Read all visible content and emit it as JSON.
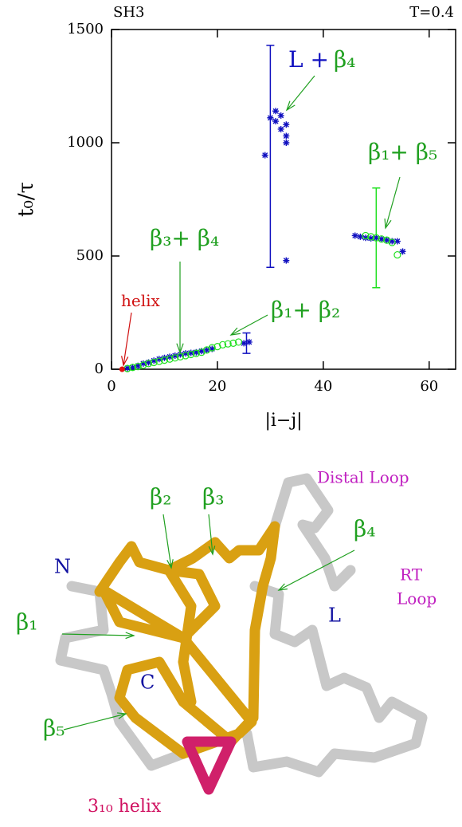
{
  "chart_data": {
    "type": "scatter",
    "title": "SH3",
    "subtitle": "T=0.4",
    "xlabel": "|i−j|",
    "ylabel": "t₀/τ",
    "xlim": [
      0,
      65
    ],
    "xticks": [
      0,
      20,
      40,
      60
    ],
    "ylim": [
      0,
      1500
    ],
    "yticks": [
      0,
      500,
      1000,
      1500
    ],
    "series": [
      {
        "name": "blue",
        "color": "#1010c0",
        "marker": "asterisk",
        "x": [
          3,
          4,
          5,
          6,
          7,
          8,
          9,
          10,
          11,
          12,
          13,
          14,
          15,
          16,
          17,
          18,
          19,
          25,
          26,
          29,
          30,
          31,
          31,
          32,
          32,
          33,
          33,
          33,
          33,
          46,
          47,
          48,
          49,
          50,
          51,
          52,
          53,
          54,
          55
        ],
        "values": [
          5,
          8,
          15,
          25,
          30,
          38,
          45,
          50,
          55,
          60,
          65,
          70,
          72,
          75,
          80,
          85,
          90,
          115,
          120,
          945,
          1110,
          1140,
          1095,
          1120,
          1060,
          1080,
          1000,
          1030,
          480,
          590,
          585,
          580,
          578,
          580,
          575,
          570,
          565,
          565,
          520
        ]
      },
      {
        "name": "green",
        "color": "#20e020",
        "marker": "circle",
        "x": [
          3,
          4,
          5,
          6,
          7,
          8,
          9,
          10,
          11,
          12,
          13,
          14,
          15,
          16,
          17,
          18,
          19,
          20,
          21,
          22,
          23,
          24,
          48,
          49,
          50,
          51,
          52,
          53,
          54
        ],
        "values": [
          3,
          8,
          12,
          18,
          25,
          30,
          35,
          40,
          45,
          50,
          55,
          60,
          65,
          70,
          75,
          85,
          95,
          100,
          108,
          112,
          115,
          120,
          590,
          585,
          580,
          575,
          570,
          560,
          505
        ]
      },
      {
        "name": "helix",
        "color": "#e01010",
        "marker": "dot",
        "x": [
          2
        ],
        "values": [
          0
        ]
      }
    ],
    "error_bars": [
      {
        "x": 30,
        "value": 940,
        "error": 490,
        "color": "#1010c0"
      },
      {
        "x": 50,
        "value": 580,
        "error": 220,
        "color": "#20e020"
      },
      {
        "x": 25.5,
        "value": 115,
        "error": 45,
        "color": "#1010c0"
      }
    ],
    "annotations": [
      {
        "parts": [
          {
            "text": "helix",
            "color": "#d01010"
          }
        ]
      },
      {
        "parts": [
          {
            "text": "β₃+ β₄",
            "color": "#20a020"
          }
        ]
      },
      {
        "parts": [
          {
            "text": "β₁+ β₂",
            "color": "#20a020"
          }
        ]
      },
      {
        "parts": [
          {
            "text": "L +",
            "color": "#1010c0"
          },
          {
            "text": "β₄",
            "color": "#20a020"
          }
        ]
      },
      {
        "parts": [
          {
            "text": "β₁+ β₅",
            "color": "#20a020"
          }
        ]
      }
    ]
  },
  "structure": {
    "labels": [
      {
        "text": "Distal Loop",
        "color": "#c020c0"
      },
      {
        "text": "β₂",
        "color": "#20a020"
      },
      {
        "text": "β₃",
        "color": "#20a020"
      },
      {
        "text": "β₄",
        "color": "#20a020"
      },
      {
        "text": "N",
        "color": "#1010a0"
      },
      {
        "text": "RT",
        "color": "#c020c0"
      },
      {
        "text": "Loop",
        "color": "#c020c0"
      },
      {
        "text": "β₁",
        "color": "#20a020"
      },
      {
        "text": "L",
        "color": "#1010a0"
      },
      {
        "text": "C",
        "color": "#1010a0"
      },
      {
        "text": "β₅",
        "color": "#20a020"
      },
      {
        "text": "3₁₀ helix",
        "color": "#d01060"
      }
    ]
  }
}
